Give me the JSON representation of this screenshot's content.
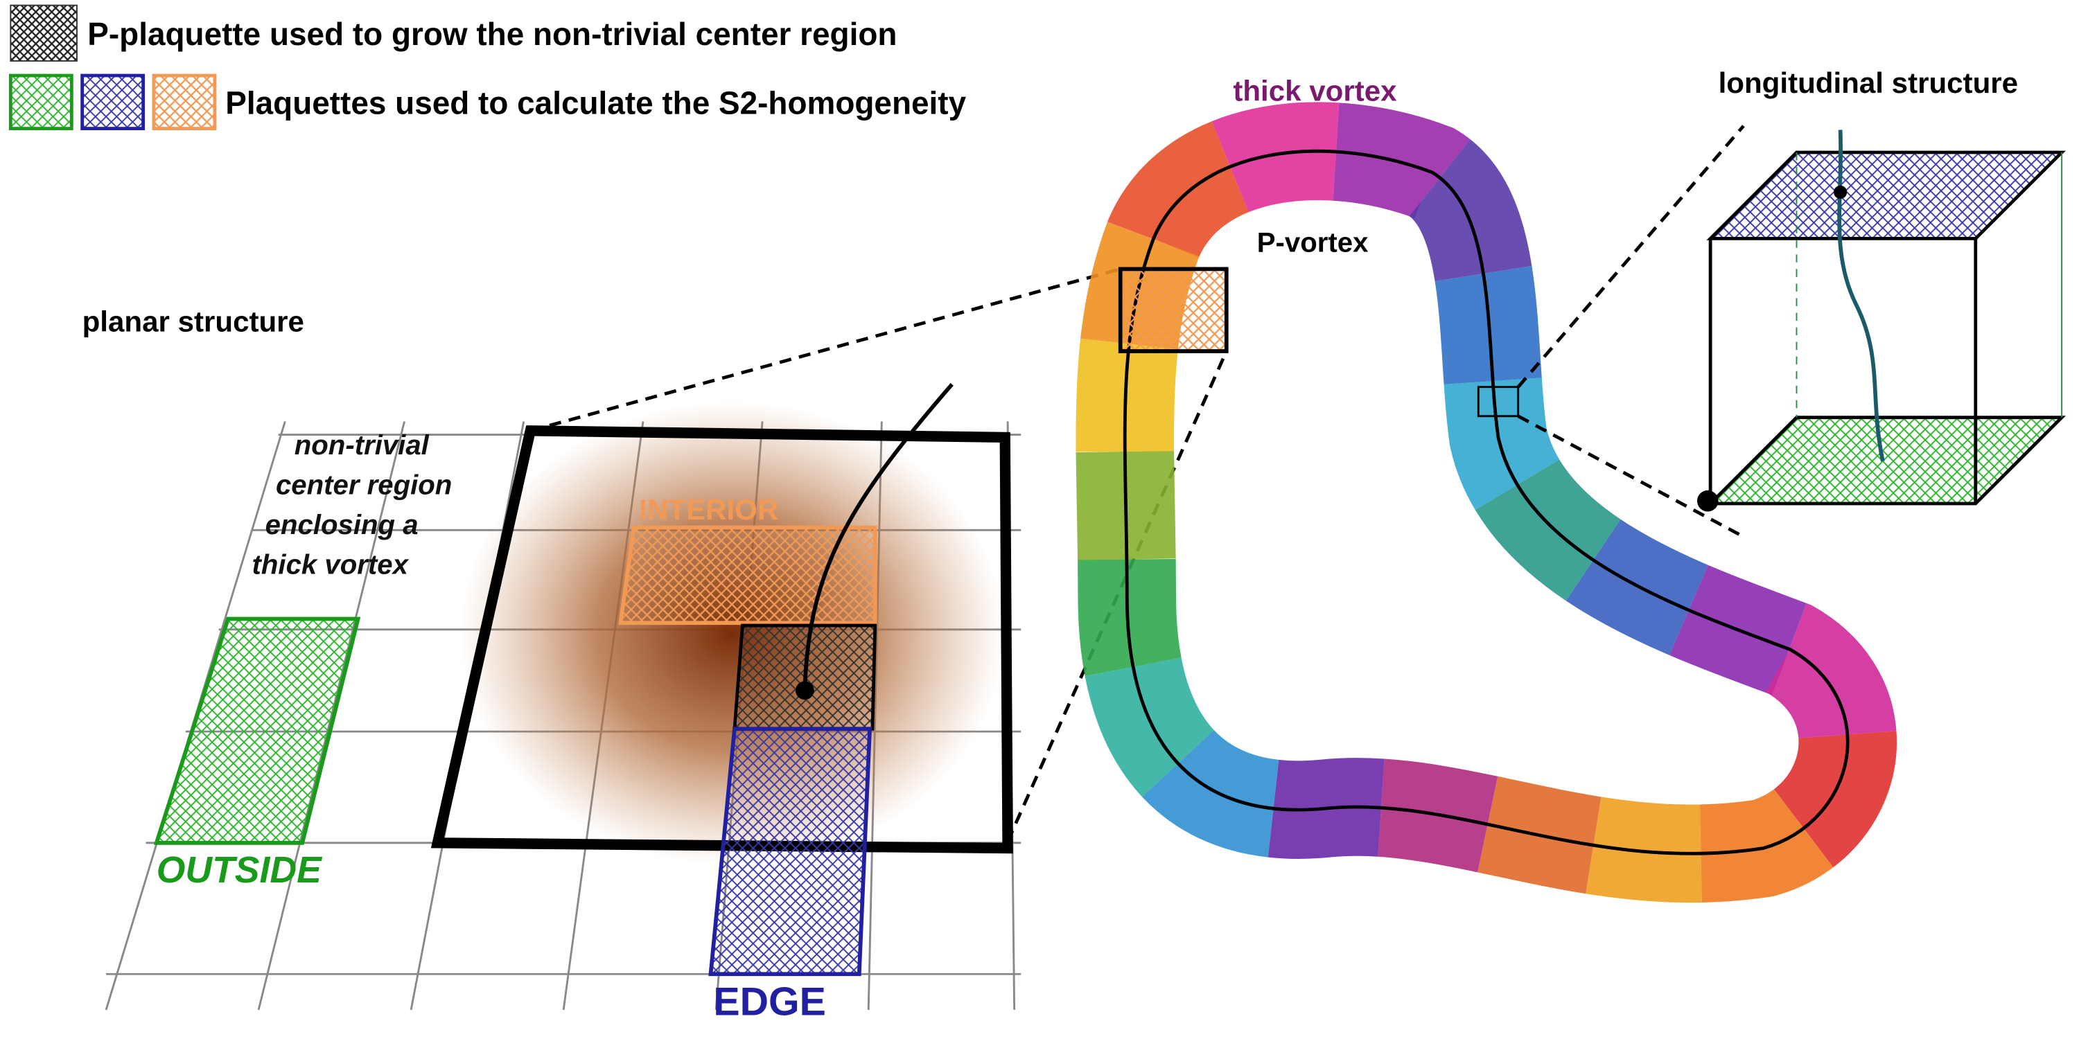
{
  "legend": [
    {
      "label": "P-plaquette used to grow the non-trivial center region"
    },
    {
      "label": "Plaquettes used to calculate the S2-homogeneity"
    }
  ],
  "labels": {
    "thick_vortex": "thick vortex",
    "longitudinal": "longitudinal structure",
    "p_vortex": "P-vortex",
    "planar": "planar structure"
  },
  "planar": {
    "region_note": [
      "non-trivial",
      "center region",
      "enclosing a",
      "thick vortex"
    ],
    "interior": "INTERIOR",
    "outside": "OUTSIDE",
    "edge": "EDGE"
  }
}
